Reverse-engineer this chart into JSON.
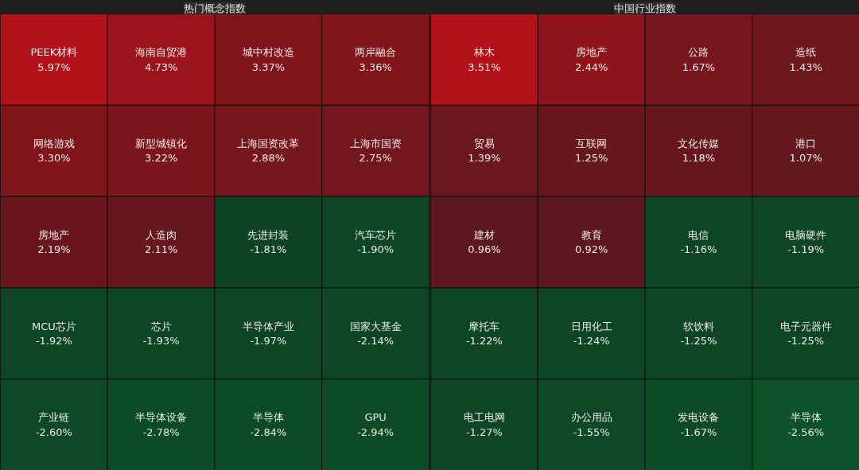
{
  "chart_data": [
    {
      "type": "other",
      "title": "热门概念指数",
      "categories": [
        "PEEK材料",
        "海南自贸港",
        "城中村改造",
        "两岸融合",
        "网络游戏",
        "新型城镇化",
        "上海国资改革",
        "上海市国资",
        "房地产",
        "人造肉",
        "先进封装",
        "汽车芯片",
        "MCU芯片",
        "芯片",
        "半导体产业",
        "国家大基金",
        "产业链",
        "半导体设备",
        "半导体",
        "GPU"
      ],
      "values": [
        5.97,
        4.73,
        3.37,
        3.36,
        3.3,
        3.22,
        2.88,
        2.75,
        2.19,
        2.11,
        -1.81,
        -1.9,
        -1.92,
        -1.93,
        -1.97,
        -2.14,
        -2.6,
        -2.78,
        -2.84,
        -2.94
      ],
      "value_labels": [
        "5.97%",
        "4.73%",
        "3.37%",
        "3.36%",
        "3.30%",
        "3.22%",
        "2.88%",
        "2.75%",
        "2.19%",
        "2.11%",
        "-1.81%",
        "-1.90%",
        "-1.92%",
        "-1.93%",
        "-1.97%",
        "-2.14%",
        "-2.60%",
        "-2.78%",
        "-2.84%",
        "-2.94%"
      ]
    },
    {
      "type": "other",
      "title": "中国行业指数",
      "categories": [
        "林木",
        "房地产",
        "公路",
        "造纸",
        "贸易",
        "互联网",
        "文化传媒",
        "港口",
        "建材",
        "教育",
        "电信",
        "电脑硬件",
        "摩托车",
        "日用化工",
        "软饮料",
        "电子元器件",
        "电工电网",
        "办公用品",
        "发电设备",
        "半导体"
      ],
      "values": [
        3.51,
        2.44,
        1.67,
        1.43,
        1.39,
        1.25,
        1.18,
        1.07,
        0.96,
        0.92,
        -1.16,
        -1.19,
        -1.22,
        -1.24,
        -1.25,
        -1.25,
        -1.27,
        -1.55,
        -1.67,
        -2.56
      ],
      "value_labels": [
        "3.51%",
        "2.44%",
        "1.67%",
        "1.43%",
        "1.39%",
        "1.25%",
        "1.18%",
        "1.07%",
        "0.96%",
        "0.92%",
        "-1.16%",
        "-1.19%",
        "-1.22%",
        "-1.24%",
        "-1.25%",
        "-1.25%",
        "-1.27%",
        "-1.55%",
        "-1.67%",
        "-2.56%"
      ]
    }
  ]
}
